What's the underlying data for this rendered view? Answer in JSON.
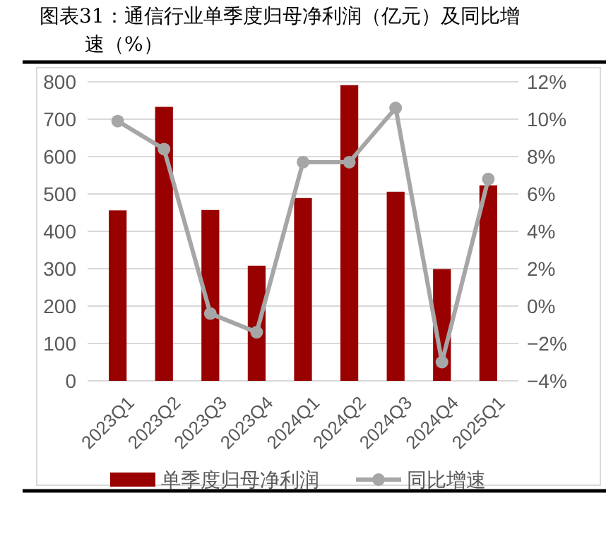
{
  "chart_data": {
    "type": "bar",
    "title": "图表31：通信行业单季度归母净利润（亿元）及同比增速（%）",
    "categories": [
      "2023Q1",
      "2023Q2",
      "2023Q3",
      "2023Q4",
      "2024Q1",
      "2024Q2",
      "2024Q3",
      "2024Q4",
      "2025Q1"
    ],
    "series": [
      {
        "name": "单季度归母净利润",
        "color": "#990000",
        "values": [
          456,
          733,
          457,
          308,
          489,
          791,
          506,
          299,
          523
        ]
      },
      {
        "name": "同比增速",
        "type": "line",
        "axis": "y2",
        "color": "#a6a6a6",
        "marker": "circle",
        "values": [
          9.9,
          8.4,
          -0.4,
          -1.4,
          7.7,
          7.7,
          10.6,
          -3.0,
          6.8
        ]
      }
    ],
    "ylim": [
      0,
      800
    ],
    "yticks": [
      0,
      100,
      200,
      300,
      400,
      500,
      600,
      700,
      800
    ],
    "y2lim": [
      -4,
      12
    ],
    "y2ticks": [
      {
        "value": -4,
        "label": "−4%"
      },
      {
        "value": -2,
        "label": "−2%"
      },
      {
        "value": 0,
        "label": "0%"
      },
      {
        "value": 2,
        "label": "2%"
      },
      {
        "value": 4,
        "label": "4%"
      },
      {
        "value": 6,
        "label": "6%"
      },
      {
        "value": 8,
        "label": "8%"
      },
      {
        "value": 10,
        "label": "10%"
      },
      {
        "value": 12,
        "label": "12%"
      }
    ],
    "grid": "y",
    "legend": "bottom"
  }
}
